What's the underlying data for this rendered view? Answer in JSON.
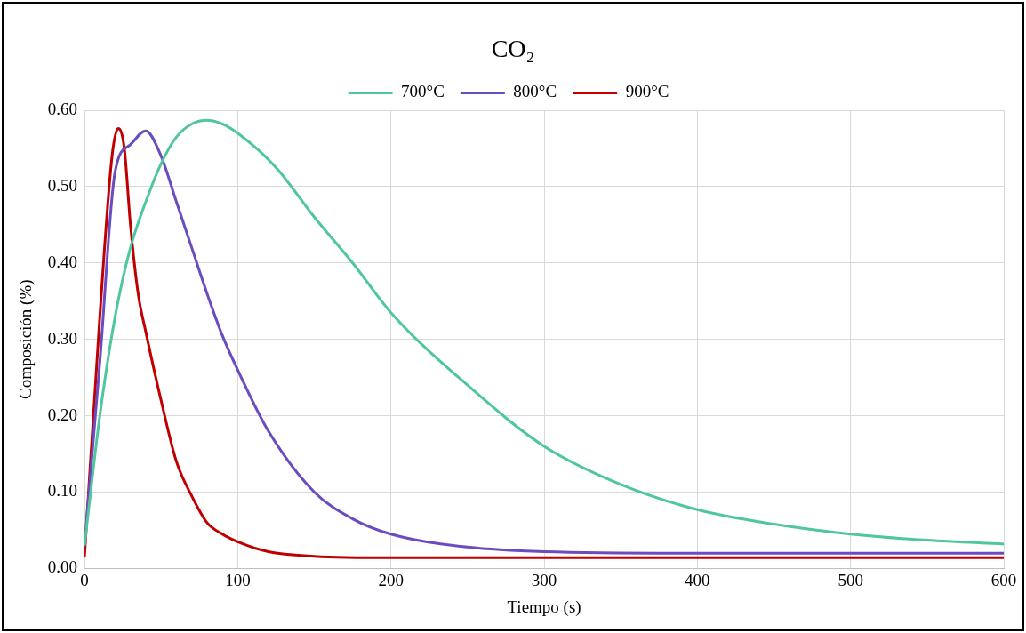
{
  "chart_data": {
    "type": "line",
    "title": "CO₂",
    "xlabel": "Tiempo (s)",
    "ylabel": "Composición (%)",
    "xlim": [
      0,
      600
    ],
    "xticks": [
      0,
      100,
      200,
      300,
      400,
      500,
      600
    ],
    "ylim": [
      0,
      0.6
    ],
    "yticks": [
      {
        "value": 0,
        "label": "0.00"
      },
      {
        "value": 0.1,
        "label": "0.10"
      },
      {
        "value": 0.2,
        "label": "0.20"
      },
      {
        "value": 0.3,
        "label": "0.30"
      },
      {
        "value": 0.4,
        "label": "0.40"
      },
      {
        "value": 0.5,
        "label": "0.50"
      },
      {
        "value": 0.6,
        "label": "0.60"
      }
    ],
    "grid": true,
    "legend": "top",
    "marker": "none",
    "line_style": "solid",
    "series": [
      {
        "name": "700°C",
        "color": "#4fc6a0",
        "x": [
          0,
          10,
          20,
          30,
          40,
          50,
          60,
          70,
          80,
          90,
          100,
          125,
          150,
          175,
          200,
          250,
          300,
          350,
          400,
          450,
          500,
          550,
          600
        ],
        "values": [
          0.03,
          0.2,
          0.33,
          0.42,
          0.48,
          0.53,
          0.565,
          0.582,
          0.587,
          0.582,
          0.57,
          0.525,
          0.46,
          0.4,
          0.335,
          0.24,
          0.16,
          0.11,
          0.077,
          0.058,
          0.045,
          0.037,
          0.032
        ]
      },
      {
        "name": "800°C",
        "color": "#6a4cc0",
        "x": [
          0,
          10,
          20,
          30,
          40,
          50,
          60,
          70,
          80,
          90,
          100,
          120,
          150,
          175,
          200,
          250,
          300,
          400,
          500,
          600
        ],
        "values": [
          0.03,
          0.27,
          0.52,
          0.555,
          0.573,
          0.54,
          0.48,
          0.42,
          0.36,
          0.305,
          0.26,
          0.18,
          0.1,
          0.065,
          0.045,
          0.028,
          0.022,
          0.02,
          0.02,
          0.02
        ]
      },
      {
        "name": "900°C",
        "color": "#c00000",
        "x": [
          0,
          10,
          18,
          22,
          26,
          30,
          35,
          40,
          50,
          60,
          70,
          80,
          90,
          100,
          120,
          150,
          200,
          300,
          400,
          500,
          600
        ],
        "values": [
          0.015,
          0.33,
          0.54,
          0.576,
          0.55,
          0.45,
          0.36,
          0.31,
          0.22,
          0.14,
          0.095,
          0.06,
          0.045,
          0.035,
          0.022,
          0.016,
          0.014,
          0.014,
          0.014,
          0.014,
          0.014
        ]
      }
    ]
  }
}
